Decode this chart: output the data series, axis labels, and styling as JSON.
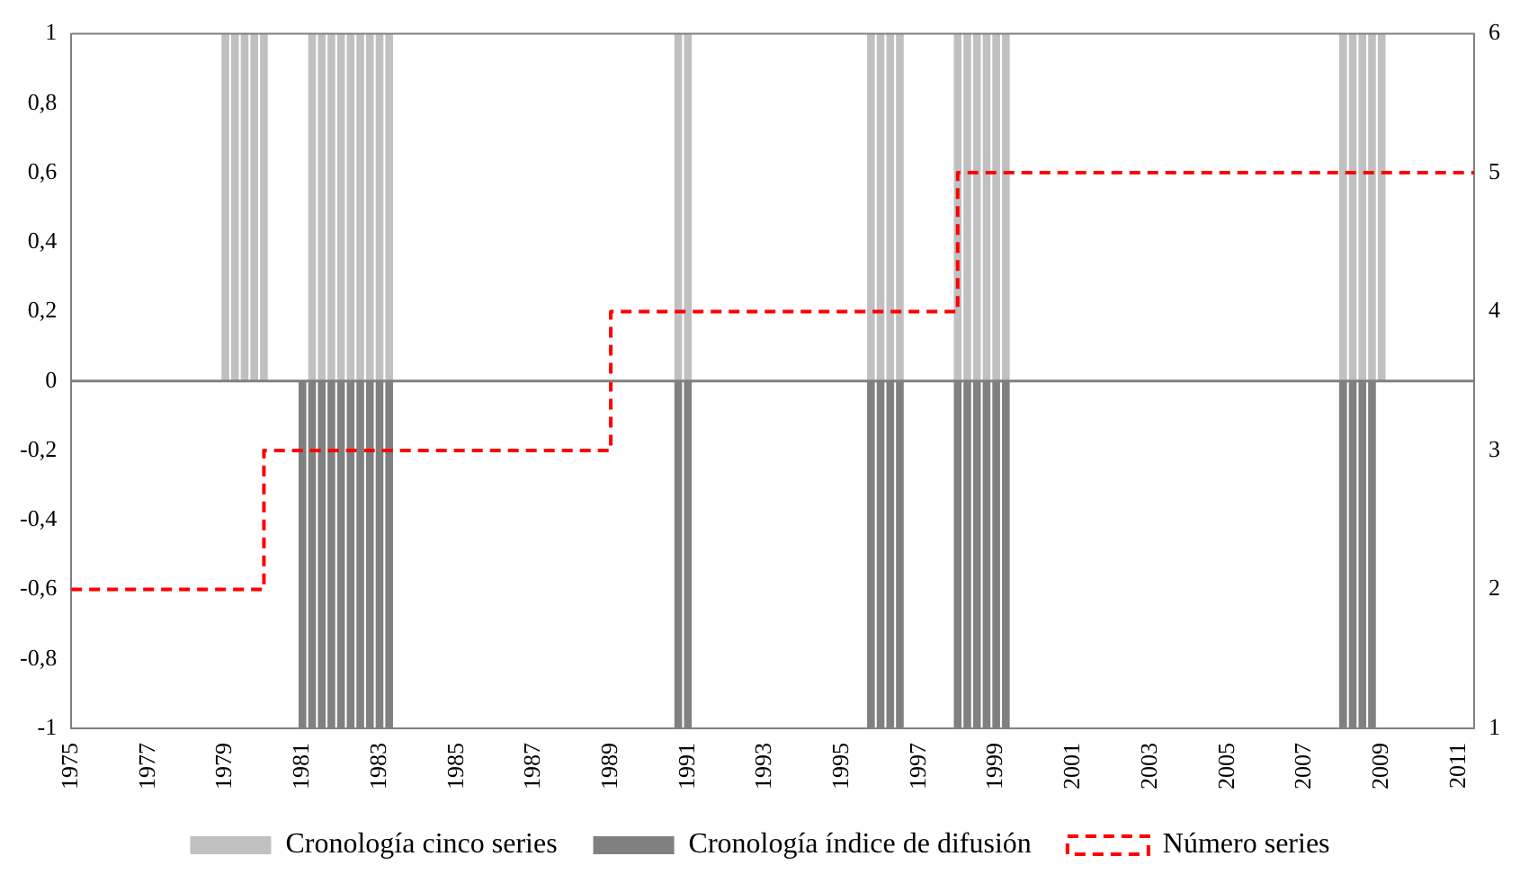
{
  "chart_data": {
    "type": "bar",
    "xlim": [
      1975,
      2011.4
    ],
    "xticks": [
      1975,
      1977,
      1979,
      1981,
      1983,
      1985,
      1987,
      1989,
      1991,
      1993,
      1995,
      1997,
      1999,
      2001,
      2003,
      2005,
      2007,
      2009,
      2011
    ],
    "ylim": [
      -1,
      1
    ],
    "yticks": [
      {
        "value": -1,
        "label": "-1"
      },
      {
        "value": -0.8,
        "label": "-0,8"
      },
      {
        "value": -0.6,
        "label": "-0,6"
      },
      {
        "value": -0.4,
        "label": "-0,4"
      },
      {
        "value": -0.2,
        "label": "-0,2"
      },
      {
        "value": 0,
        "label": "0"
      },
      {
        "value": 0.2,
        "label": "0,2"
      },
      {
        "value": 0.4,
        "label": "0,4"
      },
      {
        "value": 0.6,
        "label": "0,6"
      },
      {
        "value": 0.8,
        "label": "0,8"
      },
      {
        "value": 1,
        "label": "1"
      }
    ],
    "y2lim": [
      1,
      6
    ],
    "y2ticks": [
      1,
      2,
      3,
      4,
      5,
      6
    ],
    "grid": false,
    "legend": "bottom",
    "ref_lines": [
      {
        "axis": "y",
        "value": 0,
        "color": "#808080"
      }
    ],
    "series": [
      {
        "name": "Cronología cinco series",
        "color": "#c0c0c0",
        "x": [
          1979,
          1979.25,
          1979.5,
          1979.75,
          1980,
          1981.25,
          1981.5,
          1981.75,
          1982,
          1982.25,
          1982.5,
          1982.75,
          1983,
          1983.25,
          1990.75,
          1991,
          1995.75,
          1996,
          1996.25,
          1996.5,
          1998,
          1998.25,
          1998.5,
          1998.75,
          1999,
          1999.25,
          2008,
          2008.25,
          2008.5,
          2008.75,
          2009
        ],
        "values": [
          1,
          1,
          1,
          1,
          1,
          1,
          1,
          1,
          1,
          1,
          1,
          1,
          1,
          1,
          1,
          1,
          1,
          1,
          1,
          1,
          1,
          1,
          1,
          1,
          1,
          1,
          1,
          1,
          1,
          1,
          1
        ]
      },
      {
        "name": "Cronología índice de difusión",
        "color": "#808080",
        "x": [
          1981,
          1981.25,
          1981.5,
          1981.75,
          1982,
          1982.25,
          1982.5,
          1982.75,
          1983,
          1983.25,
          1990.75,
          1991,
          1995.75,
          1996,
          1996.25,
          1996.5,
          1998,
          1998.25,
          1998.5,
          1998.75,
          1999,
          1999.25,
          2008,
          2008.25,
          2008.5,
          2008.75
        ],
        "values": [
          -1,
          -1,
          -1,
          -1,
          -1,
          -1,
          -1,
          -1,
          -1,
          -1,
          -1,
          -1,
          -1,
          -1,
          -1,
          -1,
          -1,
          -1,
          -1,
          -1,
          -1,
          -1,
          -1,
          -1,
          -1,
          -1
        ]
      },
      {
        "name": "Número series",
        "type": "step",
        "axis": "y2",
        "color": "#ff0000",
        "line_style": "dashed",
        "x": [
          1975,
          1980,
          1989,
          1998,
          2011.4
        ],
        "values": [
          2,
          3,
          4,
          5,
          5
        ]
      }
    ]
  }
}
